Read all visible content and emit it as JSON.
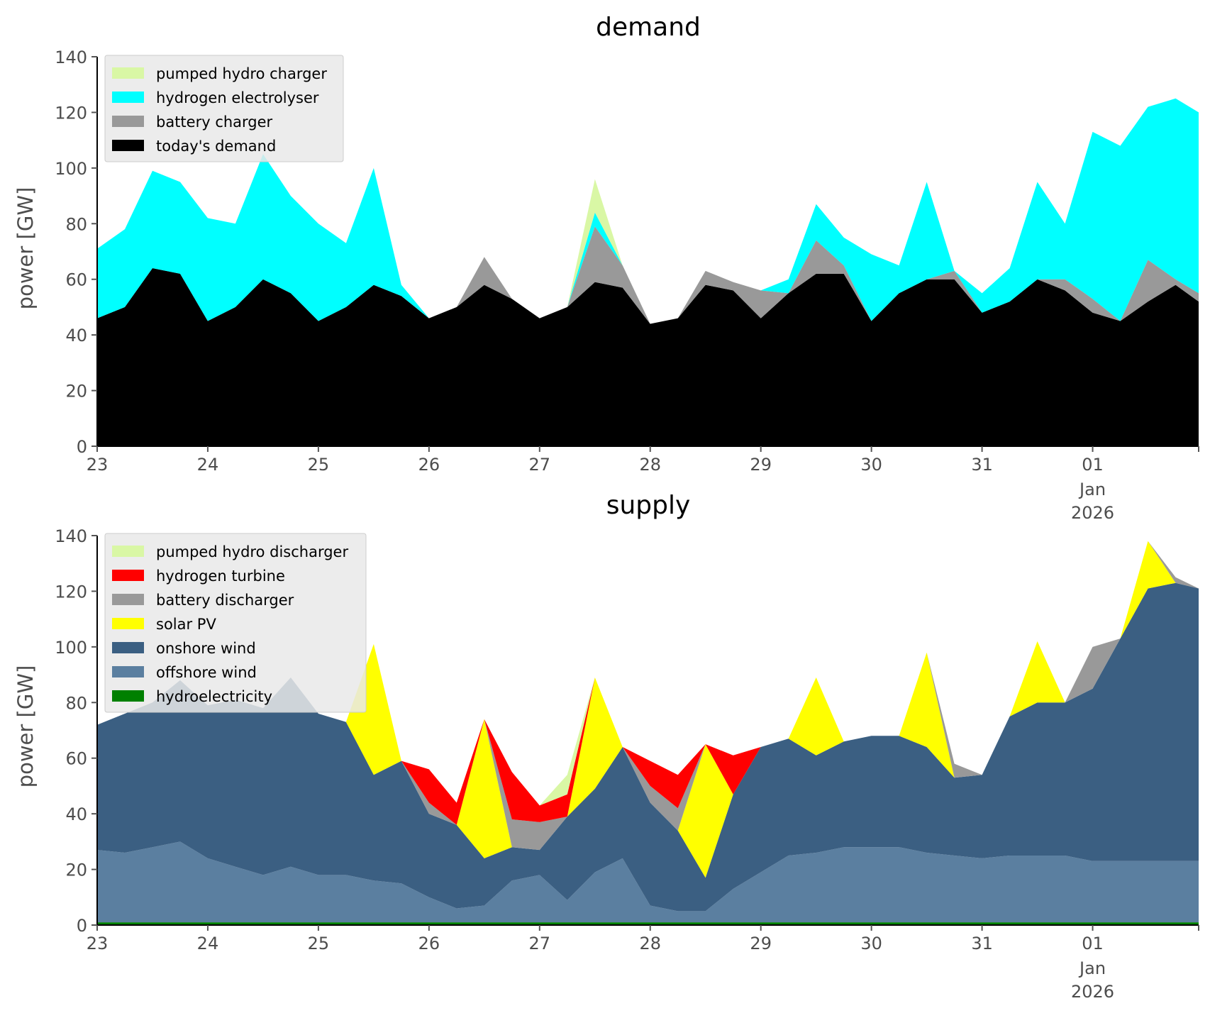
{
  "chart_data": [
    {
      "type": "area",
      "title": "demand",
      "ylabel": "power [GW]",
      "xlabel": "",
      "ylim": [
        0,
        140
      ],
      "yticks": [
        0,
        20,
        40,
        60,
        80,
        100,
        120,
        140
      ],
      "xlim": [
        "2025-12-23 00:00",
        "2026-01-01 23:00"
      ],
      "xticks": [
        {
          "date": "2025-12-23",
          "label": "23"
        },
        {
          "date": "2025-12-24",
          "label": "24"
        },
        {
          "date": "2025-12-25",
          "label": "25"
        },
        {
          "date": "2025-12-26",
          "label": "26"
        },
        {
          "date": "2025-12-27",
          "label": "27"
        },
        {
          "date": "2025-12-28",
          "label": "28"
        },
        {
          "date": "2025-12-29",
          "label": "29"
        },
        {
          "date": "2025-12-30",
          "label": "30"
        },
        {
          "date": "2025-12-31",
          "label": "31"
        },
        {
          "date": "2026-01-01",
          "label": "01",
          "sublabel": [
            "Jan",
            "2026"
          ]
        }
      ],
      "legend_position": "top-left",
      "stacked": true,
      "x": [
        "2025-12-23 00:00",
        "2025-12-23 06:00",
        "2025-12-23 12:00",
        "2025-12-23 18:00",
        "2025-12-24 00:00",
        "2025-12-24 06:00",
        "2025-12-24 12:00",
        "2025-12-24 18:00",
        "2025-12-25 00:00",
        "2025-12-25 06:00",
        "2025-12-25 12:00",
        "2025-12-25 18:00",
        "2025-12-26 00:00",
        "2025-12-26 06:00",
        "2025-12-26 12:00",
        "2025-12-26 18:00",
        "2025-12-27 00:00",
        "2025-12-27 06:00",
        "2025-12-27 12:00",
        "2025-12-27 18:00",
        "2025-12-28 00:00",
        "2025-12-28 06:00",
        "2025-12-28 12:00",
        "2025-12-28 18:00",
        "2025-12-29 00:00",
        "2025-12-29 06:00",
        "2025-12-29 12:00",
        "2025-12-29 18:00",
        "2025-12-30 00:00",
        "2025-12-30 06:00",
        "2025-12-30 12:00",
        "2025-12-30 18:00",
        "2025-12-31 00:00",
        "2025-12-31 06:00",
        "2025-12-31 12:00",
        "2025-12-31 18:00",
        "2026-01-01 00:00",
        "2026-01-01 06:00",
        "2026-01-01 12:00",
        "2026-01-01 18:00",
        "2026-01-01 23:00"
      ],
      "series": [
        {
          "name": "today's demand",
          "color": "#000000",
          "values": [
            46,
            50,
            64,
            62,
            45,
            50,
            60,
            55,
            45,
            50,
            58,
            54,
            46,
            50,
            58,
            53,
            46,
            50,
            59,
            57,
            44,
            46,
            58,
            56,
            46,
            55,
            62,
            62,
            45,
            55,
            60,
            60,
            48,
            52,
            60,
            56,
            48,
            45,
            52,
            58,
            52
          ]
        },
        {
          "name": "battery charger",
          "color": "#999999",
          "values": [
            0,
            0,
            0,
            0,
            0,
            0,
            0,
            0,
            0,
            0,
            0,
            0,
            0,
            0,
            10,
            0,
            0,
            0,
            20,
            8,
            0,
            0,
            5,
            3,
            10,
            0,
            12,
            3,
            0,
            0,
            0,
            3,
            0,
            0,
            0,
            4,
            5,
            0,
            15,
            2,
            3
          ]
        },
        {
          "name": "hydrogen electrolyser",
          "color": "#00ffff",
          "values": [
            25,
            28,
            35,
            33,
            37,
            30,
            45,
            35,
            35,
            23,
            42,
            4,
            0,
            0,
            0,
            0,
            0,
            0,
            5,
            0,
            0,
            0,
            0,
            0,
            0,
            5,
            13,
            10,
            24,
            10,
            35,
            0,
            7,
            12,
            35,
            20,
            60,
            63,
            55,
            65,
            65
          ]
        },
        {
          "name": "pumped hydro charger",
          "color": "#d9f7a5",
          "values": [
            0,
            0,
            0,
            0,
            0,
            0,
            0,
            0,
            0,
            0,
            0,
            0,
            0,
            0,
            0,
            0,
            0,
            0,
            12,
            0,
            0,
            0,
            0,
            0,
            0,
            0,
            0,
            0,
            0,
            0,
            0,
            0,
            0,
            0,
            0,
            0,
            0,
            0,
            0,
            0,
            0
          ]
        }
      ]
    },
    {
      "type": "area",
      "title": "supply",
      "ylabel": "power [GW]",
      "xlabel": "",
      "ylim": [
        0,
        140
      ],
      "yticks": [
        0,
        20,
        40,
        60,
        80,
        100,
        120,
        140
      ],
      "xlim": [
        "2025-12-23 00:00",
        "2026-01-01 23:00"
      ],
      "xticks": [
        {
          "date": "2025-12-23",
          "label": "23"
        },
        {
          "date": "2025-12-24",
          "label": "24"
        },
        {
          "date": "2025-12-25",
          "label": "25"
        },
        {
          "date": "2025-12-26",
          "label": "26"
        },
        {
          "date": "2025-12-27",
          "label": "27"
        },
        {
          "date": "2025-12-28",
          "label": "28"
        },
        {
          "date": "2025-12-29",
          "label": "29"
        },
        {
          "date": "2025-12-30",
          "label": "30"
        },
        {
          "date": "2025-12-31",
          "label": "31"
        },
        {
          "date": "2026-01-01",
          "label": "01",
          "sublabel": [
            "Jan",
            "2026"
          ]
        }
      ],
      "legend_position": "top-left",
      "stacked": true,
      "x": [
        "2025-12-23 00:00",
        "2025-12-23 06:00",
        "2025-12-23 12:00",
        "2025-12-23 18:00",
        "2025-12-24 00:00",
        "2025-12-24 06:00",
        "2025-12-24 12:00",
        "2025-12-24 18:00",
        "2025-12-25 00:00",
        "2025-12-25 06:00",
        "2025-12-25 12:00",
        "2025-12-25 18:00",
        "2025-12-26 00:00",
        "2025-12-26 06:00",
        "2025-12-26 12:00",
        "2025-12-26 18:00",
        "2025-12-27 00:00",
        "2025-12-27 06:00",
        "2025-12-27 12:00",
        "2025-12-27 18:00",
        "2025-12-28 00:00",
        "2025-12-28 06:00",
        "2025-12-28 12:00",
        "2025-12-28 18:00",
        "2025-12-29 00:00",
        "2025-12-29 06:00",
        "2025-12-29 12:00",
        "2025-12-29 18:00",
        "2025-12-30 00:00",
        "2025-12-30 06:00",
        "2025-12-30 12:00",
        "2025-12-30 18:00",
        "2025-12-31 00:00",
        "2025-12-31 06:00",
        "2025-12-31 12:00",
        "2025-12-31 18:00",
        "2026-01-01 00:00",
        "2026-01-01 06:00",
        "2026-01-01 12:00",
        "2026-01-01 18:00",
        "2026-01-01 23:00"
      ],
      "series": [
        {
          "name": "hydroelectricity",
          "color": "#008000",
          "values": [
            1,
            1,
            1,
            1,
            1,
            1,
            1,
            1,
            1,
            1,
            1,
            1,
            1,
            1,
            1,
            1,
            1,
            1,
            1,
            1,
            1,
            1,
            1,
            1,
            1,
            1,
            1,
            1,
            1,
            1,
            1,
            1,
            1,
            1,
            1,
            1,
            1,
            1,
            1,
            1,
            1
          ]
        },
        {
          "name": "offshore wind",
          "color": "#5b7fa0",
          "values": [
            26,
            25,
            27,
            29,
            23,
            20,
            17,
            20,
            17,
            17,
            15,
            14,
            9,
            5,
            6,
            15,
            17,
            8,
            18,
            23,
            6,
            4,
            4,
            12,
            18,
            24,
            25,
            27,
            27,
            27,
            25,
            24,
            23,
            24,
            24,
            24,
            22,
            22,
            22,
            22,
            22
          ]
        },
        {
          "name": "onshore wind",
          "color": "#3b5f82",
          "values": [
            45,
            50,
            52,
            58,
            55,
            60,
            60,
            68,
            58,
            55,
            38,
            44,
            30,
            30,
            17,
            12,
            9,
            30,
            30,
            40,
            37,
            29,
            12,
            34,
            45,
            42,
            35,
            38,
            40,
            40,
            38,
            28,
            30,
            50,
            55,
            55,
            62,
            80,
            98,
            100,
            98
          ]
        },
        {
          "name": "solar PV",
          "color": "#ffff00",
          "values": [
            0,
            0,
            0,
            0,
            0,
            0,
            0,
            0,
            0,
            0,
            47,
            0,
            0,
            0,
            50,
            0,
            0,
            0,
            40,
            0,
            0,
            0,
            48,
            0,
            0,
            0,
            28,
            0,
            0,
            0,
            34,
            0,
            0,
            0,
            22,
            0,
            0,
            0,
            17,
            0,
            0
          ]
        },
        {
          "name": "battery discharger",
          "color": "#999999",
          "values": [
            0,
            0,
            0,
            0,
            0,
            0,
            0,
            0,
            0,
            0,
            0,
            0,
            4,
            0,
            0,
            10,
            10,
            0,
            0,
            0,
            6,
            8,
            0,
            0,
            0,
            0,
            0,
            0,
            0,
            0,
            0,
            5,
            0,
            0,
            0,
            0,
            15,
            0,
            0,
            2,
            0
          ]
        },
        {
          "name": "hydrogen turbine",
          "color": "#ff0000",
          "values": [
            0,
            0,
            0,
            0,
            0,
            0,
            0,
            0,
            0,
            0,
            0,
            0,
            12,
            8,
            0,
            17,
            6,
            8,
            0,
            0,
            9,
            12,
            0,
            14,
            0,
            0,
            0,
            0,
            0,
            0,
            0,
            0,
            0,
            0,
            0,
            0,
            0,
            0,
            0,
            0,
            0
          ]
        },
        {
          "name": "pumped hydro discharger",
          "color": "#d9f7a5",
          "values": [
            0,
            0,
            0,
            0,
            0,
            0,
            0,
            0,
            0,
            0,
            0,
            0,
            0,
            0,
            0,
            0,
            0,
            7,
            0,
            0,
            0,
            0,
            0,
            0,
            0,
            0,
            0,
            0,
            0,
            0,
            0,
            0,
            0,
            0,
            0,
            0,
            0,
            0,
            0,
            0,
            0
          ]
        }
      ]
    }
  ]
}
